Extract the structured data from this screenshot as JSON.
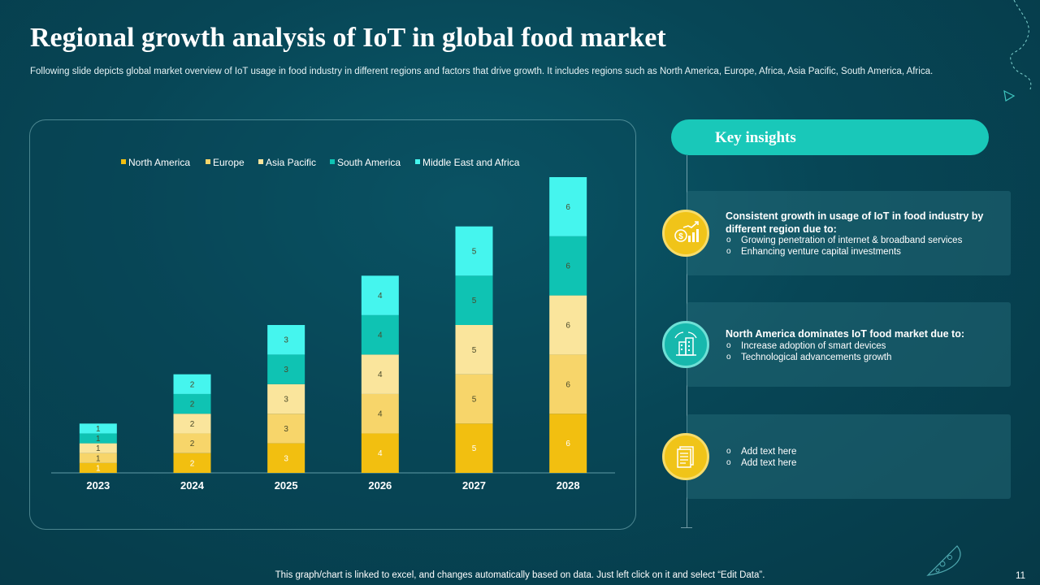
{
  "title": "Regional growth analysis of IoT in global food market",
  "subtitle": "Following slide depicts global market overview of IoT usage in food industry in different regions and factors that drive growth. It includes regions such as North America, Europe, Africa, Asia Pacific, South America, Africa.",
  "chart_data": {
    "type": "bar",
    "stacked": true,
    "categories": [
      "2023",
      "2024",
      "2025",
      "2026",
      "2027",
      "2028"
    ],
    "series": [
      {
        "name": "North America",
        "color": "#f2bf10",
        "values": [
          1,
          2,
          3,
          4,
          5,
          6
        ]
      },
      {
        "name": "Europe",
        "color": "#f7d56a",
        "values": [
          1,
          2,
          3,
          4,
          5,
          6
        ]
      },
      {
        "name": "Asia Pacific",
        "color": "#fae59c",
        "values": [
          1,
          2,
          3,
          4,
          5,
          6
        ]
      },
      {
        "name": "South America",
        "color": "#0fc3b3",
        "values": [
          1,
          2,
          3,
          4,
          5,
          6
        ]
      },
      {
        "name": "Middle East and Africa",
        "color": "#45f5ee",
        "values": [
          1,
          2,
          3,
          4,
          5,
          6
        ]
      }
    ],
    "legend_position": "top",
    "ylim": [
      0,
      30
    ],
    "grid": false
  },
  "insights": {
    "header": "Key insights",
    "cards": [
      {
        "icon": "money-growth-icon",
        "heading": "Consistent growth in usage of IoT in food industry by different region due to:",
        "bullets": [
          "Growing penetration of internet & broadband services",
          "Enhancing venture capital investments"
        ]
      },
      {
        "icon": "smart-city-icon",
        "heading": "North America dominates IoT food market due to:",
        "bullets": [
          "Increase adoption of smart devices",
          "Technological advancements growth"
        ]
      },
      {
        "icon": "document-icon",
        "heading": "",
        "bullets": [
          "Add text here",
          "Add text here"
        ]
      }
    ]
  },
  "footer_note": "This graph/chart is linked to excel, and changes automatically based on data. Just left click on it and select “Edit Data”.",
  "page_number": "11"
}
